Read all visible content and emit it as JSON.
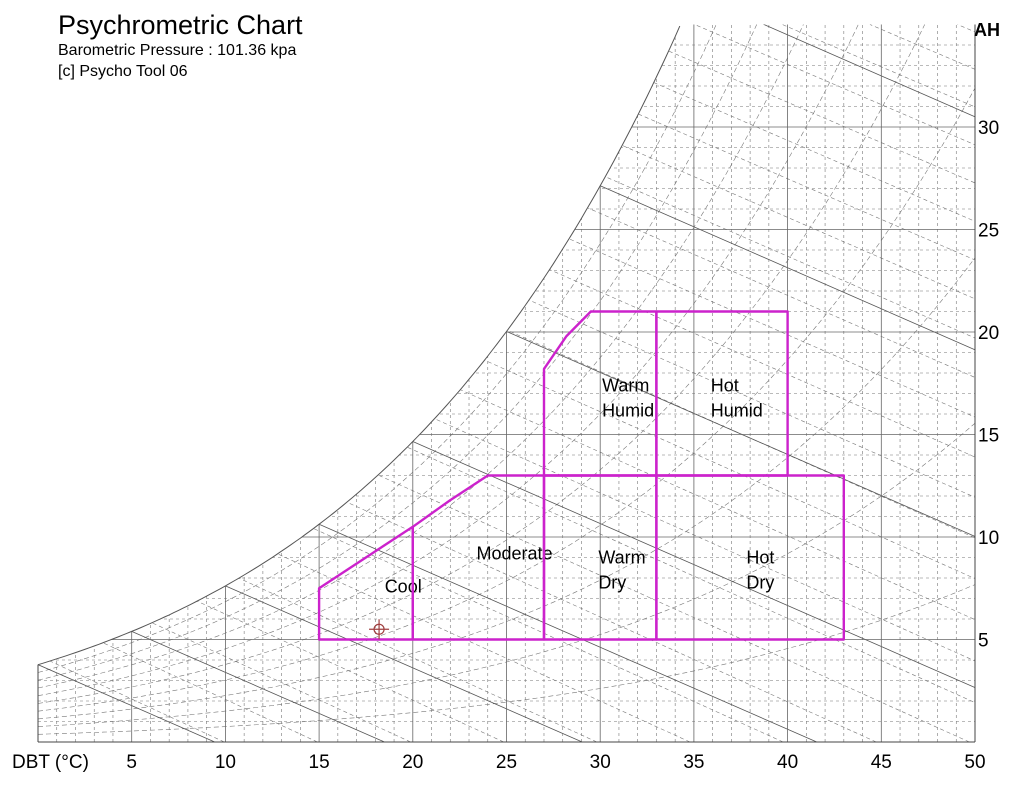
{
  "chart_data": {
    "type": "psychrometric",
    "title": "Psychrometric Chart",
    "subtitle_lines": [
      "Barometric Pressure : 101.36 kpa",
      "[c] Psycho Tool 06"
    ],
    "xlabel": "DBT (°C)",
    "ylabel": "AH",
    "x_ticks": [
      5,
      10,
      15,
      20,
      25,
      30,
      35,
      40,
      45,
      50
    ],
    "y_ticks": [
      5,
      10,
      15,
      20,
      25,
      30
    ],
    "xlim": [
      0,
      50
    ],
    "ylim": [
      0,
      35
    ],
    "pressure_kpa": 101.36,
    "grid": true,
    "zones": [
      {
        "name": "Cool",
        "label_lines": [
          "Cool"
        ],
        "polygon": [
          [
            15,
            5
          ],
          [
            15,
            7.5
          ],
          [
            17.5,
            9
          ],
          [
            20,
            10.5
          ],
          [
            20,
            5
          ]
        ],
        "label_at": [
          18.5,
          7.3
        ]
      },
      {
        "name": "Moderate",
        "label_lines": [
          "Moderate"
        ],
        "polygon": [
          [
            20,
            5
          ],
          [
            20,
            10.5
          ],
          [
            22,
            11.8
          ],
          [
            24,
            13
          ],
          [
            27,
            13
          ],
          [
            27,
            5
          ]
        ],
        "label_at": [
          23.4,
          8.9
        ]
      },
      {
        "name": "Warm Dry",
        "label_lines": [
          "Warm",
          "Dry"
        ],
        "polygon": [
          [
            27,
            5
          ],
          [
            27,
            13
          ],
          [
            33,
            13
          ],
          [
            33,
            5
          ]
        ],
        "label_at": [
          29.9,
          8.7
        ]
      },
      {
        "name": "Hot Dry",
        "label_lines": [
          "Hot",
          "Dry"
        ],
        "polygon": [
          [
            33,
            5
          ],
          [
            33,
            13
          ],
          [
            43,
            13
          ],
          [
            43,
            5
          ]
        ],
        "label_at": [
          37.8,
          8.7
        ]
      },
      {
        "name": "Warm Humid",
        "label_lines": [
          "Warm",
          "Humid"
        ],
        "polygon": [
          [
            27,
            13
          ],
          [
            27,
            18.2
          ],
          [
            28.2,
            19.8
          ],
          [
            29.5,
            21
          ],
          [
            33,
            21
          ],
          [
            33,
            13
          ]
        ],
        "label_at": [
          30.1,
          17.1
        ]
      },
      {
        "name": "Hot Humid",
        "label_lines": [
          "Hot",
          "Humid"
        ],
        "polygon": [
          [
            33,
            13
          ],
          [
            33,
            21
          ],
          [
            40,
            21
          ],
          [
            40,
            13
          ]
        ],
        "label_at": [
          35.9,
          17.1
        ]
      }
    ],
    "marker": {
      "dbt": 18.2,
      "ah": 5.5
    },
    "colors": {
      "grid": "#777777",
      "zone_stroke": "#cc22cc",
      "marker": "#a04040"
    }
  }
}
